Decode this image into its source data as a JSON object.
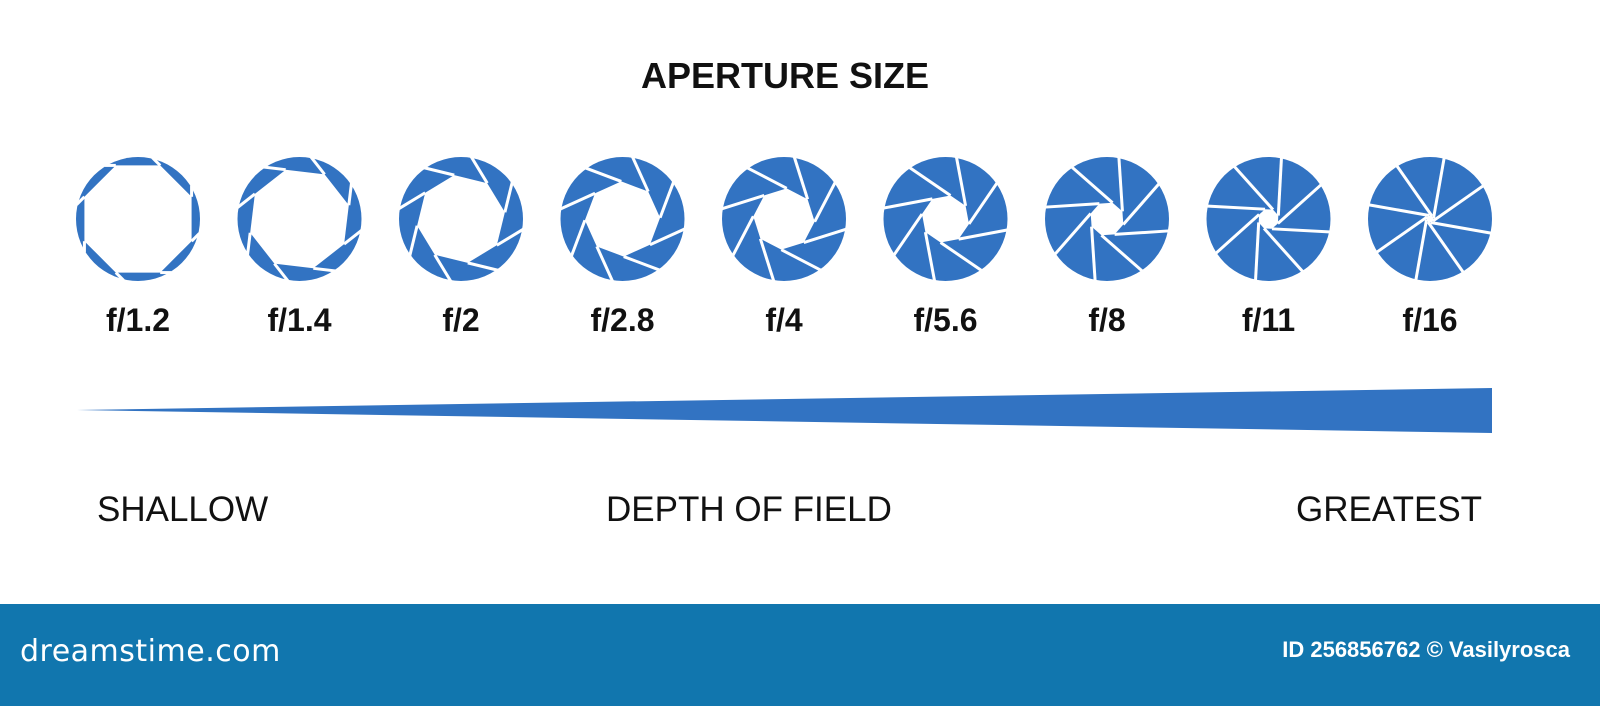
{
  "title": "APERTURE SIZE",
  "apertures": [
    "f/1.2",
    "f/1.4",
    "f/2",
    "f/2.8",
    "f/4",
    "f/5.6",
    "f/8",
    "f/11",
    "f/16"
  ],
  "depth_of_field": {
    "left": "SHALLOW",
    "center": "DEPTH OF FIELD",
    "right": "GREATEST"
  },
  "footer": {
    "logo": "dreamstime.com",
    "credit": "ID 256856762 © Vasilyrosca"
  },
  "colors": {
    "accent": "#3273c2",
    "footer": "#1176ae"
  }
}
